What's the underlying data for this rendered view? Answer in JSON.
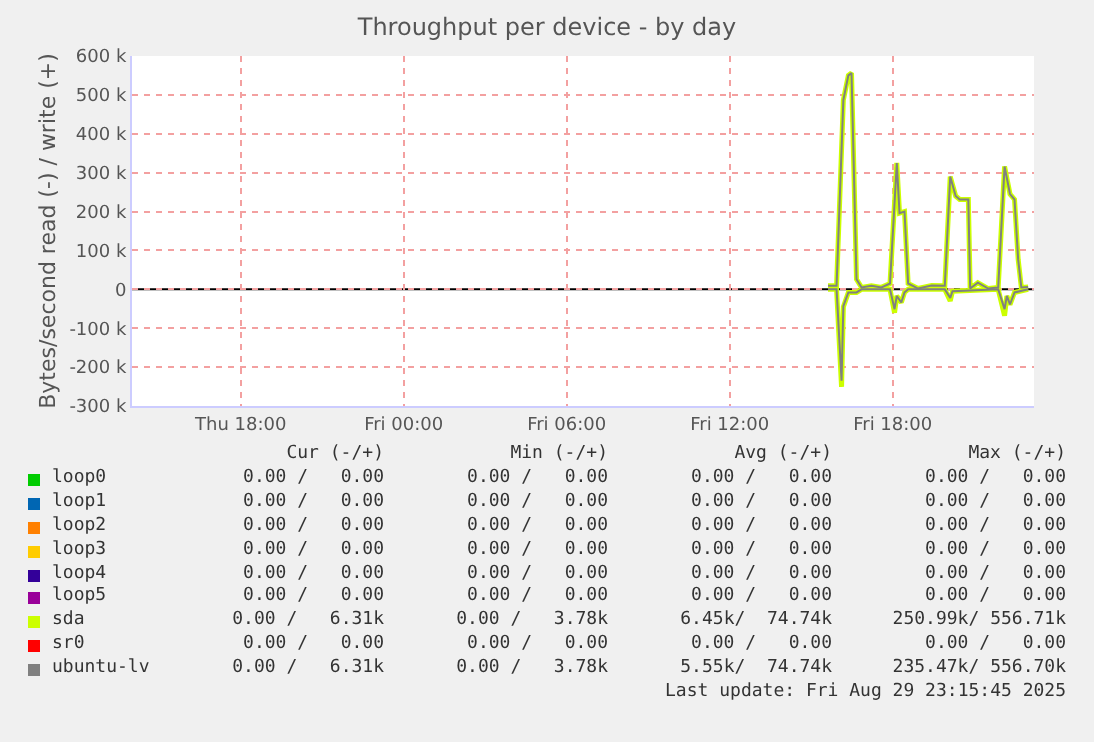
{
  "chart_data": {
    "type": "line",
    "title": "Throughput per device - by day",
    "ylabel": "Bytes/second read (-) / write (+)",
    "xlim": [
      "2025-08-28T14:00",
      "2025-08-29T23:12"
    ],
    "xticks": [
      {
        "value": "2025-08-28T18:00",
        "label": "Thu 18:00"
      },
      {
        "value": "2025-08-29T00:00",
        "label": "Fri 00:00"
      },
      {
        "value": "2025-08-29T06:00",
        "label": "Fri 06:00"
      },
      {
        "value": "2025-08-29T12:00",
        "label": "Fri 12:00"
      },
      {
        "value": "2025-08-29T18:00",
        "label": "Fri 18:00"
      }
    ],
    "ylim": [
      -300000,
      600000
    ],
    "yticks": [
      {
        "value": -300000,
        "label": "-300 k"
      },
      {
        "value": -200000,
        "label": "-200 k"
      },
      {
        "value": -100000,
        "label": "-100 k"
      },
      {
        "value": 0,
        "label": "0"
      },
      {
        "value": 100000,
        "label": "100 k"
      },
      {
        "value": 200000,
        "label": "200 k"
      },
      {
        "value": 300000,
        "label": "300 k"
      },
      {
        "value": 400000,
        "label": "400 k"
      },
      {
        "value": 500000,
        "label": "500 k"
      },
      {
        "value": 600000,
        "label": "600 k"
      }
    ],
    "grid": true,
    "legend": "bottom",
    "ref_lines": [
      {
        "axis": "y",
        "value": 0,
        "color": "#000000"
      }
    ],
    "series": [
      {
        "name": "loop0",
        "color": "#00cc00",
        "values": [
          null,
          null
        ]
      },
      {
        "name": "loop1",
        "color": "#0066b3",
        "values": [
          null,
          null
        ]
      },
      {
        "name": "loop2",
        "color": "#ff8000",
        "values": [
          null,
          null
        ]
      },
      {
        "name": "loop3",
        "color": "#ffcc00",
        "values": [
          null,
          null
        ]
      },
      {
        "name": "loop4",
        "color": "#330099",
        "values": [
          null,
          null
        ]
      },
      {
        "name": "loop5",
        "color": "#990099",
        "values": [
          null,
          null
        ]
      },
      {
        "name": "sda",
        "color": "#ccff00",
        "x": [
          "2025-08-29T15:37",
          "2025-08-29T15:56",
          "2025-08-29T16:11",
          "2025-08-29T16:22",
          "2025-08-29T16:29",
          "2025-08-29T16:40",
          "2025-08-29T16:51",
          "2025-08-29T17:13",
          "2025-08-29T17:35",
          "2025-08-29T17:54",
          "2025-08-29T18:09",
          "2025-08-29T18:15",
          "2025-08-29T18:26",
          "2025-08-29T18:34",
          "2025-08-29T18:56",
          "2025-08-29T19:26",
          "2025-08-29T19:55",
          "2025-08-29T20:07",
          "2025-08-29T20:19",
          "2025-08-29T20:28",
          "2025-08-29T20:47",
          "2025-08-29T20:51",
          "2025-08-29T21:08",
          "2025-08-29T21:31",
          "2025-08-29T21:53",
          "2025-08-29T22:07",
          "2025-08-29T22:19",
          "2025-08-29T22:29",
          "2025-08-29T22:37",
          "2025-08-29T22:44",
          "2025-08-29T22:59"
        ],
        "values": [
          9000,
          9000,
          487000,
          550000,
          556000,
          26000,
          5000,
          9000,
          5000,
          15000,
          325000,
          196000,
          200000,
          15000,
          2000,
          10000,
          9000,
          290000,
          240000,
          231000,
          231000,
          2000,
          17000,
          2000,
          5000,
          316000,
          245000,
          231000,
          77000,
          5000,
          6000
        ]
      },
      {
        "color": "#ccff00",
        "x": [
          "2025-08-29T15:37",
          "2025-08-29T15:56",
          "2025-08-29T16:07",
          "2025-08-29T16:11",
          "2025-08-29T16:22",
          "2025-08-29T16:40",
          "2025-08-29T16:51",
          "2025-08-29T17:35",
          "2025-08-29T17:54",
          "2025-08-29T18:04",
          "2025-08-29T18:09",
          "2025-08-29T18:19",
          "2025-08-29T18:26",
          "2025-08-29T18:34",
          "2025-08-29T19:55",
          "2025-08-29T20:07",
          "2025-08-29T20:12",
          "2025-08-29T21:53",
          "2025-08-29T22:07",
          "2025-08-29T22:12",
          "2025-08-29T22:19",
          "2025-08-29T22:29",
          "2025-08-29T22:59"
        ],
        "values": [
          0,
          0,
          -251000,
          -45000,
          -8000,
          -8000,
          0,
          0,
          0,
          -60000,
          -17000,
          -34000,
          -8000,
          0,
          0,
          -30000,
          -5000,
          0,
          -68000,
          -17000,
          -39000,
          -8000,
          0
        ]
      },
      {
        "name": "sr0",
        "color": "#ff0000",
        "values": [
          null,
          null
        ]
      },
      {
        "name": "ubuntu-lv",
        "color": "#808080",
        "x": [
          "2025-08-29T15:37",
          "2025-08-29T15:56",
          "2025-08-29T16:11",
          "2025-08-29T16:22",
          "2025-08-29T16:29",
          "2025-08-29T16:40",
          "2025-08-29T16:51",
          "2025-08-29T17:13",
          "2025-08-29T17:35",
          "2025-08-29T17:54",
          "2025-08-29T18:09",
          "2025-08-29T18:15",
          "2025-08-29T18:26",
          "2025-08-29T18:34",
          "2025-08-29T18:56",
          "2025-08-29T19:26",
          "2025-08-29T19:55",
          "2025-08-29T20:07",
          "2025-08-29T20:19",
          "2025-08-29T20:28",
          "2025-08-29T20:47",
          "2025-08-29T20:51",
          "2025-08-29T21:08",
          "2025-08-29T21:31",
          "2025-08-29T21:53",
          "2025-08-29T22:07",
          "2025-08-29T22:19",
          "2025-08-29T22:29",
          "2025-08-29T22:37",
          "2025-08-29T22:44",
          "2025-08-29T22:59"
        ],
        "values": [
          9000,
          9000,
          487000,
          550000,
          556000,
          26000,
          5000,
          9000,
          5000,
          15000,
          325000,
          196000,
          200000,
          15000,
          2000,
          10000,
          9000,
          290000,
          240000,
          231000,
          231000,
          2000,
          17000,
          2000,
          5000,
          316000,
          245000,
          231000,
          77000,
          5000,
          6000
        ]
      },
      {
        "color": "#808080",
        "x": [
          "2025-08-29T15:37",
          "2025-08-29T15:56",
          "2025-08-29T16:07",
          "2025-08-29T16:11",
          "2025-08-29T16:22",
          "2025-08-29T16:40",
          "2025-08-29T16:51",
          "2025-08-29T17:35",
          "2025-08-29T17:54",
          "2025-08-29T18:04",
          "2025-08-29T18:09",
          "2025-08-29T18:19",
          "2025-08-29T18:26",
          "2025-08-29T18:34",
          "2025-08-29T19:55",
          "2025-08-29T20:07",
          "2025-08-29T20:12",
          "2025-08-29T21:53",
          "2025-08-29T22:07",
          "2025-08-29T22:12",
          "2025-08-29T22:19",
          "2025-08-29T22:29",
          "2025-08-29T22:59"
        ],
        "values": [
          0,
          0,
          -235000,
          -43000,
          -8000,
          -8000,
          0,
          0,
          0,
          -51000,
          -17000,
          -34000,
          -8000,
          0,
          0,
          -22000,
          -5000,
          0,
          -51000,
          -17000,
          -39000,
          -8000,
          0
        ]
      }
    ],
    "annotations": [
      "Cur (-/+)",
      "Min (-/+)",
      "Avg (-/+)",
      "Max (-/+)",
      "0.00 /   0.00",
      "0.00 /   0.00",
      "0.00 /   0.00",
      "0.00 /   0.00",
      "0.00 /   0.00",
      "0.00 /   0.00",
      "0.00 /   0.00",
      "0.00 /   0.00",
      "0.00 /   0.00",
      "0.00 /   0.00",
      "0.00 /   0.00",
      "0.00 /   0.00",
      "0.00 /   0.00",
      "0.00 /   0.00",
      "0.00 /   0.00",
      "0.00 /   0.00",
      "0.00 /   0.00",
      "0.00 /   0.00",
      "0.00 /   0.00",
      "0.00 /   0.00",
      "0.00 /   0.00",
      "0.00 /   0.00",
      "0.00 /   0.00",
      "0.00 /   0.00",
      "0.00 /   6.31k",
      "0.00 /   3.78k",
      "6.45k/  74.74k",
      "250.99k/ 556.71k",
      "0.00 /   0.00",
      "0.00 /   0.00",
      "0.00 /   0.00",
      "0.00 /   0.00",
      "0.00 /   6.31k",
      "0.00 /   3.78k",
      "5.55k/  74.74k",
      "235.47k/ 556.70k",
      "Last update: Fri Aug 29 23:15:45 2025"
    ]
  }
}
